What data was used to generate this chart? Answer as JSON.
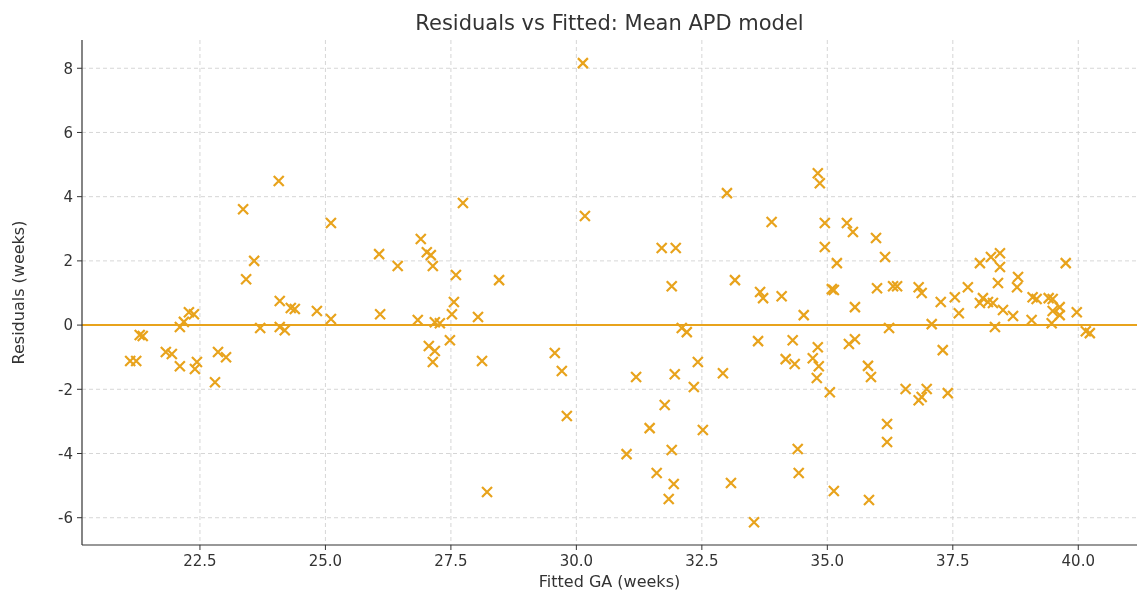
{
  "chart_data": {
    "type": "scatter",
    "title": "Residuals vs Fitted: Mean APD model",
    "xlabel": "Fitted GA (weeks)",
    "ylabel": "Residuals (weeks)",
    "xlim": [
      20.15,
      41.17
    ],
    "ylim": [
      -6.85,
      8.88
    ],
    "xticks": [
      {
        "value": 22.5,
        "label": "22.5"
      },
      {
        "value": 25,
        "label": "25.0"
      },
      {
        "value": 27.5,
        "label": "27.5"
      },
      {
        "value": 30,
        "label": "30.0"
      },
      {
        "value": 32.5,
        "label": "32.5"
      },
      {
        "value": 35,
        "label": "35.0"
      },
      {
        "value": 37.5,
        "label": "37.5"
      },
      {
        "value": 40,
        "label": "40.0"
      }
    ],
    "yticks": [
      -6,
      -4,
      -2,
      0,
      2,
      4,
      6,
      8
    ],
    "grid": true,
    "marker": "cross",
    "ref_lines": [
      {
        "axis": "y",
        "value": 0,
        "color": "#e8a31c"
      }
    ],
    "series": [
      {
        "color": "#e8a31c",
        "x": [
          21.11,
          21.23,
          21.3,
          21.36,
          21.82,
          21.94,
          22.1,
          22.1,
          22.18,
          22.28,
          22.38,
          22.44,
          22.4,
          22.8,
          22.86,
          23.02,
          23.36,
          23.42,
          23.58,
          23.7,
          24.07,
          24.09,
          24.09,
          24.19,
          24.31,
          24.39,
          24.83,
          25.11,
          25.11,
          26.07,
          26.09,
          26.44,
          26.84,
          26.9,
          27.02,
          27.1,
          27.14,
          27.06,
          27.18,
          27.14,
          27.18,
          27.28,
          27.52,
          27.56,
          27.48,
          27.6,
          27.74,
          28.04,
          28.12,
          28.22,
          28.46,
          29.57,
          29.71,
          29.81,
          30.13,
          30.17,
          31.0,
          31.19,
          31.46,
          31.6,
          31.7,
          31.98,
          31.76,
          31.9,
          31.9,
          31.96,
          31.94,
          31.84,
          32.1,
          32.2,
          32.42,
          32.34,
          32.52,
          32.92,
          33.0,
          33.16,
          33.08,
          33.54,
          33.62,
          33.66,
          33.72,
          33.89,
          34.09,
          34.17,
          34.35,
          34.31,
          34.41,
          34.43,
          34.53,
          34.71,
          34.81,
          34.83,
          34.79,
          34.81,
          34.85,
          34.95,
          34.95,
          35.05,
          35.09,
          35.13,
          35.19,
          35.13,
          35.39,
          35.51,
          35.43,
          35.55,
          35.55,
          35.81,
          35.87,
          35.83,
          35.97,
          35.99,
          36.15,
          36.23,
          36.19,
          36.19,
          36.31,
          36.39,
          36.56,
          36.82,
          36.88,
          36.98,
          36.82,
          36.88,
          37.08,
          37.26,
          37.3,
          37.4,
          37.54,
          37.62,
          37.8,
          38.04,
          38.04,
          38.1,
          38.2,
          38.3,
          38.26,
          38.44,
          38.44,
          38.34,
          38.4,
          38.5,
          38.7,
          38.8,
          38.78,
          39.07,
          39.09,
          39.17,
          39.41,
          39.49,
          39.47,
          39.63,
          39.63,
          39.49,
          39.75,
          39.97,
          40.15,
          40.23
        ],
        "values": [
          -1.12,
          -1.12,
          -0.31,
          -0.34,
          -0.84,
          -0.9,
          -1.28,
          -0.06,
          0.1,
          0.4,
          0.34,
          -1.15,
          -1.37,
          -1.78,
          -0.84,
          -1.0,
          3.61,
          1.43,
          2.0,
          -0.09,
          4.49,
          0.75,
          -0.06,
          -0.16,
          0.53,
          0.5,
          0.44,
          3.18,
          0.19,
          2.21,
          0.34,
          1.84,
          0.16,
          2.68,
          2.27,
          2.18,
          1.84,
          -0.65,
          -0.81,
          -1.15,
          0.09,
          0.06,
          0.34,
          0.72,
          -0.47,
          1.56,
          3.8,
          0.25,
          -1.12,
          -5.2,
          1.4,
          -0.87,
          -1.43,
          -2.83,
          8.16,
          3.4,
          -4.02,
          -1.62,
          -3.21,
          -4.61,
          2.4,
          2.4,
          -2.49,
          1.21,
          -3.89,
          -1.53,
          -4.95,
          -5.42,
          -0.09,
          -0.22,
          -1.15,
          -1.93,
          -3.27,
          -1.5,
          4.11,
          1.4,
          -4.92,
          -6.14,
          -0.5,
          1.03,
          0.84,
          3.21,
          0.9,
          -1.06,
          -1.21,
          -0.47,
          -3.86,
          -4.61,
          0.31,
          -1.03,
          -0.69,
          -1.28,
          -1.65,
          4.73,
          4.42,
          3.18,
          2.43,
          -2.09,
          1.12,
          1.09,
          1.93,
          -5.17,
          3.18,
          2.9,
          -0.59,
          -0.44,
          0.56,
          -1.27,
          -1.62,
          -5.45,
          2.71,
          1.15,
          2.12,
          -0.09,
          -3.08,
          -3.64,
          1.21,
          1.21,
          -1.99,
          -2.34,
          -2.24,
          -1.99,
          1.18,
          1.0,
          0.03,
          0.72,
          -0.78,
          -2.12,
          0.87,
          0.37,
          1.18,
          1.93,
          0.69,
          0.84,
          0.72,
          0.69,
          2.12,
          2.24,
          1.81,
          -0.06,
          1.31,
          0.47,
          0.28,
          1.5,
          1.18,
          0.16,
          0.87,
          0.81,
          0.84,
          0.81,
          0.06,
          0.56,
          0.31,
          0.44,
          1.93,
          0.4,
          -0.19,
          -0.25
        ]
      }
    ]
  }
}
